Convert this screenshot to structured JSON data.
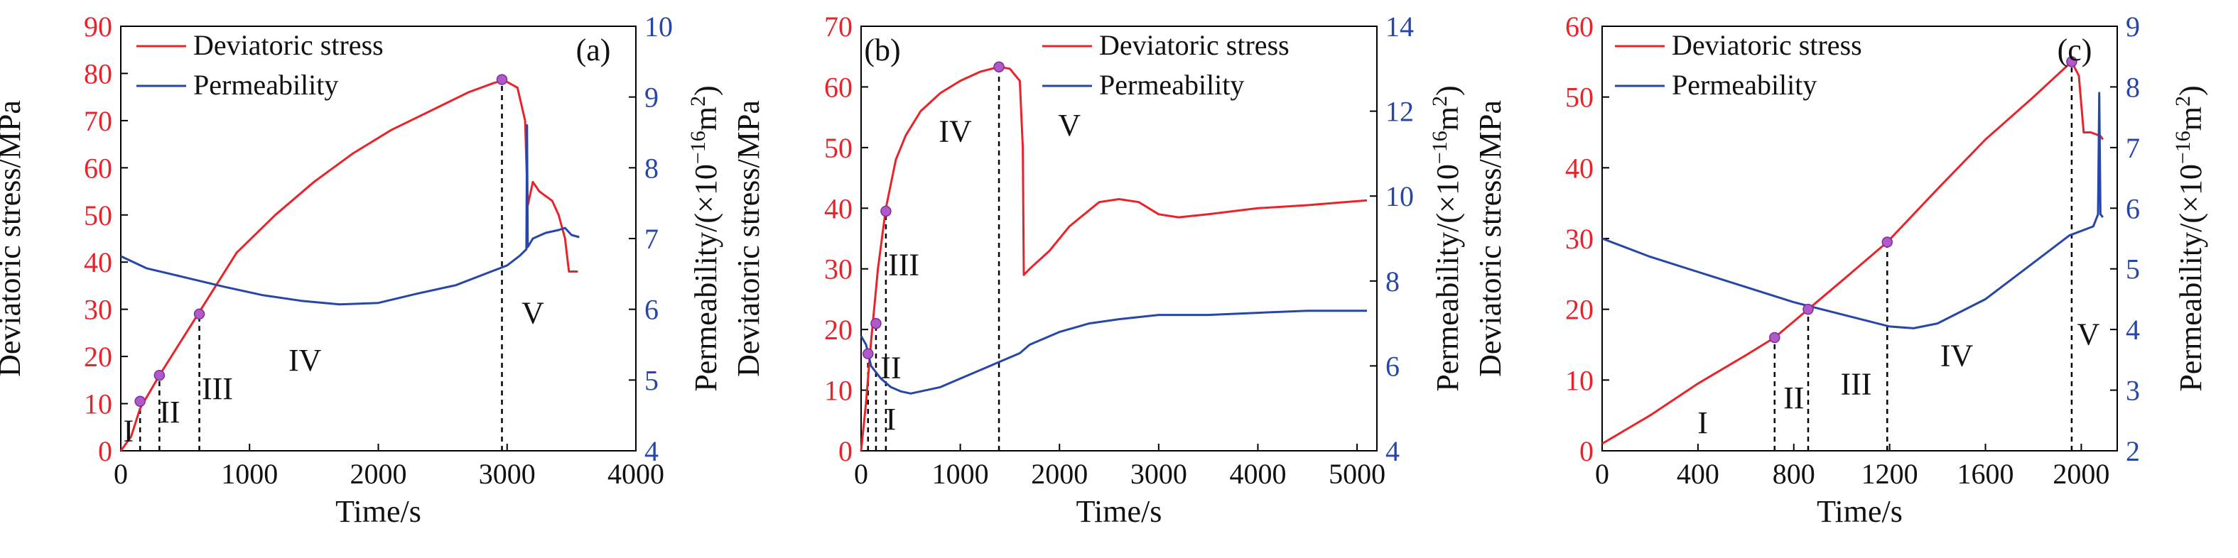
{
  "chart_data": [
    {
      "type": "line",
      "panel_label": "(a)",
      "xlabel": "Time/s",
      "ylabel_left": "Deviatoric stress/MPa",
      "ylabel_right": [
        "Permeability/(×10",
        "−16",
        "m",
        "2",
        ")"
      ],
      "xlim": [
        0,
        4000
      ],
      "ylim_left": [
        0,
        90
      ],
      "ylim_right": [
        4,
        10
      ],
      "x_ticks": [
        "0",
        "1000",
        "2000",
        "3000",
        "4000"
      ],
      "y_left_ticks": [
        "0",
        "10",
        "20",
        "30",
        "40",
        "50",
        "60",
        "70",
        "80",
        "90"
      ],
      "y_right_ticks": [
        "4",
        "5",
        "6",
        "7",
        "8",
        "9",
        "10"
      ],
      "legend": [
        "Deviatoric stress",
        "Permeability"
      ],
      "series": [
        {
          "name": "Deviatoric stress",
          "axis": "left",
          "color": "#e8232a",
          "x": [
            0,
            80,
            150,
            300,
            600,
            900,
            1200,
            1500,
            1800,
            2100,
            2400,
            2700,
            2900,
            2980,
            3080,
            3140,
            3160,
            3200,
            3250,
            3350,
            3400,
            3450,
            3480,
            3550
          ],
          "y": [
            0,
            3,
            9,
            16,
            29,
            42,
            50,
            57,
            63,
            68,
            72,
            76,
            78,
            78.5,
            77,
            70,
            52,
            57,
            55,
            53,
            50,
            45,
            38,
            38
          ]
        },
        {
          "name": "Permeability",
          "axis": "right",
          "color": "#2747a8",
          "x": [
            0,
            200,
            500,
            800,
            1100,
            1400,
            1700,
            2000,
            2300,
            2600,
            2900,
            3000,
            3100,
            3150,
            3155,
            3160,
            3200,
            3300,
            3400,
            3450,
            3500,
            3560
          ],
          "y": [
            6.75,
            6.58,
            6.45,
            6.32,
            6.2,
            6.12,
            6.07,
            6.09,
            6.22,
            6.34,
            6.55,
            6.62,
            6.76,
            6.85,
            8.6,
            6.88,
            7.0,
            7.08,
            7.12,
            7.15,
            7.05,
            7.02
          ]
        }
      ],
      "markers": [
        {
          "x": 150,
          "y": 10.5
        },
        {
          "x": 300,
          "y": 16
        },
        {
          "x": 610,
          "y": 29
        },
        {
          "x": 2960,
          "y": 78.7
        }
      ],
      "dashed_lines": [
        150,
        300,
        610,
        2960
      ],
      "stage_labels": [
        {
          "text": "I",
          "x": 60,
          "y": 2
        },
        {
          "text": "II",
          "x": 380,
          "y": 6
        },
        {
          "text": "III",
          "x": 750,
          "y": 11
        },
        {
          "text": "IV",
          "x": 1430,
          "y": 17
        },
        {
          "text": "V",
          "x": 3200,
          "y": 27
        }
      ]
    },
    {
      "type": "line",
      "panel_label": "(b)",
      "xlabel": "Time/s",
      "ylabel_left": "Deviatoric stress/MPa",
      "ylabel_right": [
        "Permeability/(×10",
        "−16",
        "m",
        "2",
        ")"
      ],
      "xlim": [
        0,
        5200
      ],
      "ylim_left": [
        0,
        70
      ],
      "ylim_right": [
        4,
        14
      ],
      "x_ticks": [
        "0",
        "1000",
        "2000",
        "3000",
        "4000",
        "5000"
      ],
      "y_left_ticks": [
        "0",
        "10",
        "20",
        "30",
        "40",
        "50",
        "60",
        "70"
      ],
      "y_right_ticks": [
        "4",
        "6",
        "8",
        "10",
        "12",
        "14"
      ],
      "legend": [
        "Deviatoric stress",
        "Permeability"
      ],
      "series": [
        {
          "name": "Deviatoric stress",
          "axis": "left",
          "color": "#e8232a",
          "x": [
            0,
            50,
            100,
            170,
            250,
            350,
            450,
            600,
            800,
            1000,
            1200,
            1390,
            1500,
            1600,
            1630,
            1640,
            1700,
            1900,
            2100,
            2400,
            2600,
            2800,
            3000,
            3200,
            3500,
            4000,
            4500,
            5100
          ],
          "y": [
            0,
            8,
            18,
            30,
            40,
            48,
            52,
            56,
            59,
            61,
            62.5,
            63.3,
            63,
            61,
            50,
            29,
            30,
            33,
            37,
            41,
            41.5,
            41,
            39,
            38.5,
            39,
            40,
            40.5,
            41.3
          ]
        },
        {
          "name": "Permeability",
          "axis": "right",
          "color": "#2747a8",
          "x": [
            0,
            50,
            100,
            200,
            300,
            400,
            500,
            600,
            800,
            1000,
            1200,
            1400,
            1600,
            1700,
            2000,
            2300,
            2600,
            3000,
            3500,
            4000,
            4500,
            5000,
            5100
          ],
          "y": [
            6.7,
            6.5,
            6.0,
            5.7,
            5.5,
            5.4,
            5.35,
            5.4,
            5.5,
            5.7,
            5.9,
            6.1,
            6.3,
            6.5,
            6.8,
            7.0,
            7.1,
            7.2,
            7.2,
            7.25,
            7.3,
            7.3,
            7.3
          ]
        }
      ],
      "markers": [
        {
          "x": 70,
          "y": 16
        },
        {
          "x": 150,
          "y": 21
        },
        {
          "x": 250,
          "y": 39.5
        },
        {
          "x": 1390,
          "y": 63.3
        }
      ],
      "dashed_lines": [
        70,
        150,
        250,
        1390
      ],
      "stage_labels": [
        {
          "text": "I",
          "x": 300,
          "y": 3.5
        },
        {
          "text": "II",
          "x": 300,
          "y": 12
        },
        {
          "text": "III",
          "x": 430,
          "y": 29
        },
        {
          "text": "IV",
          "x": 950,
          "y": 51
        },
        {
          "text": "V",
          "x": 2100,
          "y": 52
        }
      ]
    },
    {
      "type": "line",
      "panel_label": "(c)",
      "xlabel": "Time/s",
      "ylabel_left": "Deviatoric stress/MPa",
      "ylabel_right": [
        "Permeability/(×10",
        "−16",
        "m",
        "2",
        ")"
      ],
      "xlim": [
        0,
        2150
      ],
      "ylim_left": [
        0,
        60
      ],
      "ylim_right": [
        2,
        9
      ],
      "x_ticks": [
        "0",
        "400",
        "800",
        "1200",
        "1600",
        "2000"
      ],
      "y_left_ticks": [
        "0",
        "10",
        "20",
        "30",
        "40",
        "50",
        "60"
      ],
      "y_right_ticks": [
        "2",
        "3",
        "4",
        "5",
        "6",
        "7",
        "8",
        "9"
      ],
      "legend": [
        "Deviatoric stress",
        "Permeability"
      ],
      "series": [
        {
          "name": "Deviatoric stress",
          "axis": "left",
          "color": "#e8232a",
          "x": [
            0,
            200,
            400,
            600,
            720,
            860,
            1000,
            1190,
            1400,
            1600,
            1800,
            1960,
            1990,
            2010,
            2040,
            2080,
            2090
          ],
          "y": [
            1,
            5,
            9.5,
            13.5,
            16,
            20,
            24,
            29.5,
            37,
            44,
            50,
            55,
            53,
            45,
            45,
            44.5,
            44
          ]
        },
        {
          "name": "Permeability",
          "axis": "right",
          "color": "#2747a8",
          "x": [
            0,
            200,
            400,
            600,
            800,
            1000,
            1200,
            1300,
            1400,
            1600,
            1800,
            1950,
            2050,
            2070,
            2075,
            2080,
            2090
          ],
          "y": [
            5.5,
            5.2,
            4.95,
            4.7,
            4.45,
            4.25,
            4.05,
            4.02,
            4.1,
            4.5,
            5.1,
            5.55,
            5.7,
            5.9,
            7.9,
            5.9,
            5.85
          ]
        }
      ],
      "markers": [
        {
          "x": 720,
          "y": 16
        },
        {
          "x": 860,
          "y": 20
        },
        {
          "x": 1190,
          "y": 29.5
        },
        {
          "x": 1960,
          "y": 55
        }
      ],
      "dashed_lines": [
        720,
        860,
        1190,
        1960
      ],
      "stage_labels": [
        {
          "text": "I",
          "x": 420,
          "y": 2.5
        },
        {
          "text": "II",
          "x": 800,
          "y": 6
        },
        {
          "text": "III",
          "x": 1060,
          "y": 8
        },
        {
          "text": "IV",
          "x": 1480,
          "y": 12
        },
        {
          "text": "V",
          "x": 2030,
          "y": 15
        }
      ]
    }
  ]
}
